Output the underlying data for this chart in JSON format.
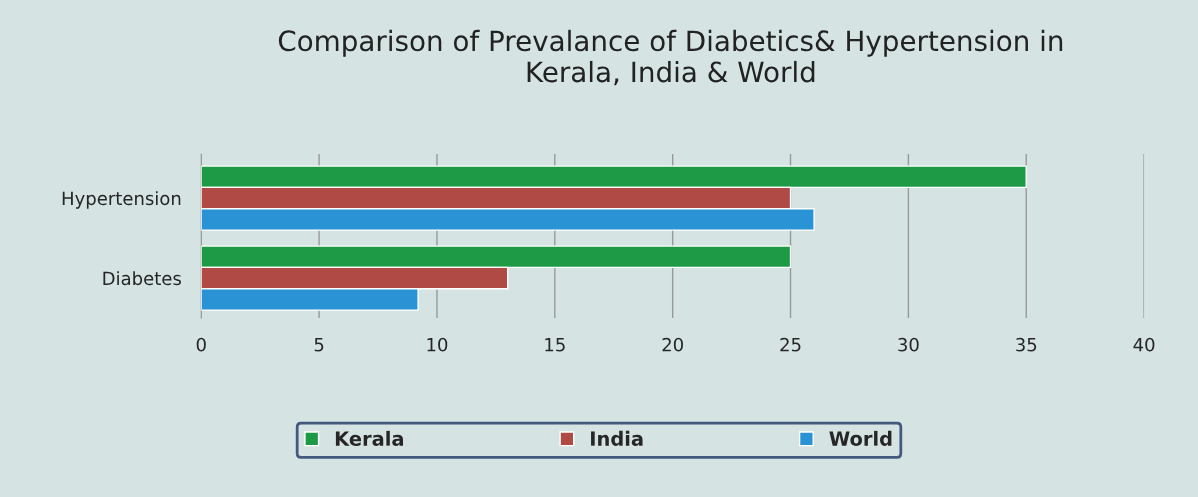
{
  "chart_data": {
    "type": "bar",
    "orientation": "horizontal",
    "title": "Comparison of Prevalance of Diabetics& Hypertension in\nKerala, India & World",
    "categories": [
      "Hypertension",
      "Diabetes"
    ],
    "series": [
      {
        "name": "Kerala",
        "color": "#1e9a47",
        "values": [
          35,
          25
        ]
      },
      {
        "name": "India",
        "color": "#b04a45",
        "values": [
          25,
          13
        ]
      },
      {
        "name": "World",
        "color": "#2a93d5",
        "values": [
          26,
          9.2
        ]
      }
    ],
    "xlim": [
      0,
      40
    ],
    "xticks": [
      0,
      5,
      10,
      15,
      20,
      25,
      30,
      35,
      40
    ],
    "grid": "x",
    "legend": "bottom"
  }
}
